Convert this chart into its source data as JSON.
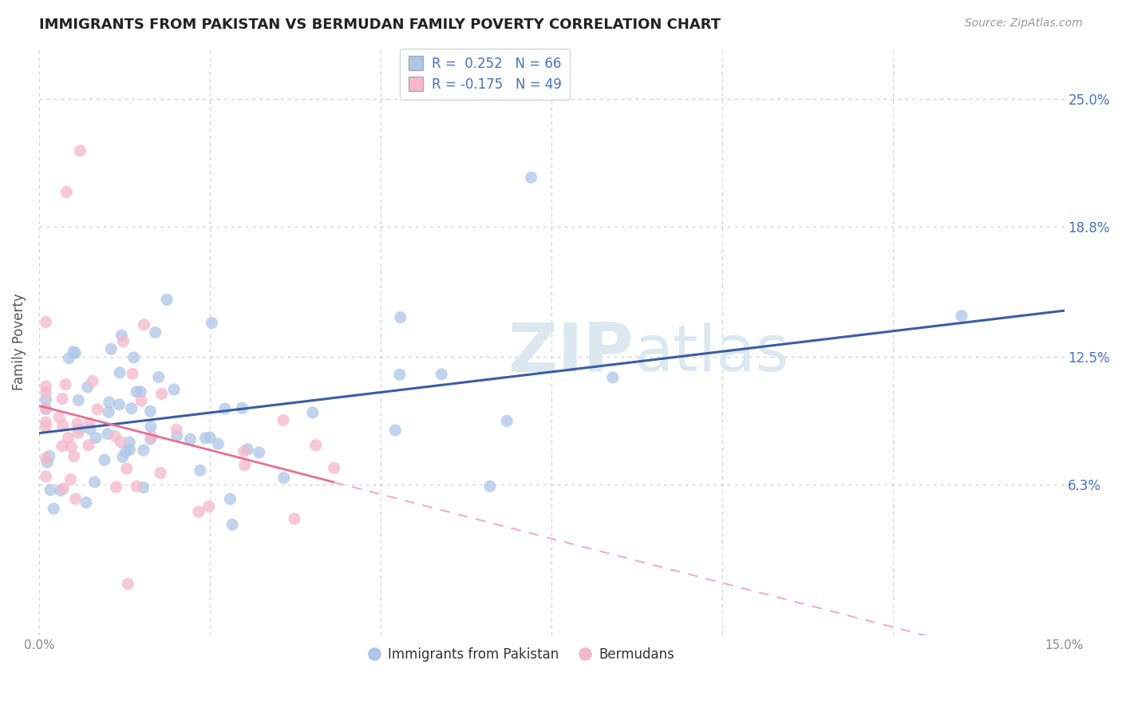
{
  "title": "IMMIGRANTS FROM PAKISTAN VS BERMUDAN FAMILY POVERTY CORRELATION CHART",
  "source": "Source: ZipAtlas.com",
  "ylabel": "Family Poverty",
  "xlim": [
    0.0,
    0.15
  ],
  "ylim": [
    -0.01,
    0.275
  ],
  "ytick_positions": [
    0.063,
    0.125,
    0.188,
    0.25
  ],
  "ytick_labels": [
    "6.3%",
    "12.5%",
    "18.8%",
    "25.0%"
  ],
  "x_tick_pos": [
    0.0,
    0.025,
    0.05,
    0.075,
    0.1,
    0.125,
    0.15
  ],
  "x_tick_labels": [
    "0.0%",
    "",
    "",
    "",
    "",
    "",
    "15.0%"
  ],
  "legend_label1": "Immigrants from Pakistan",
  "legend_label2": "Bermudans",
  "R1": 0.252,
  "N1": 66,
  "R2": -0.175,
  "N2": 49,
  "color1": "#aec6e8",
  "color2": "#f5b8cb",
  "line1_color": "#3a5ca8",
  "line2_color": "#e87090",
  "line2_dash_color": "#f0b0c0",
  "background_color": "#ffffff",
  "grid_color": "#d0d0d0",
  "title_color": "#222222",
  "watermark_color": "#dce8f0",
  "right_label_color": "#4472c4",
  "source_color": "#999999"
}
